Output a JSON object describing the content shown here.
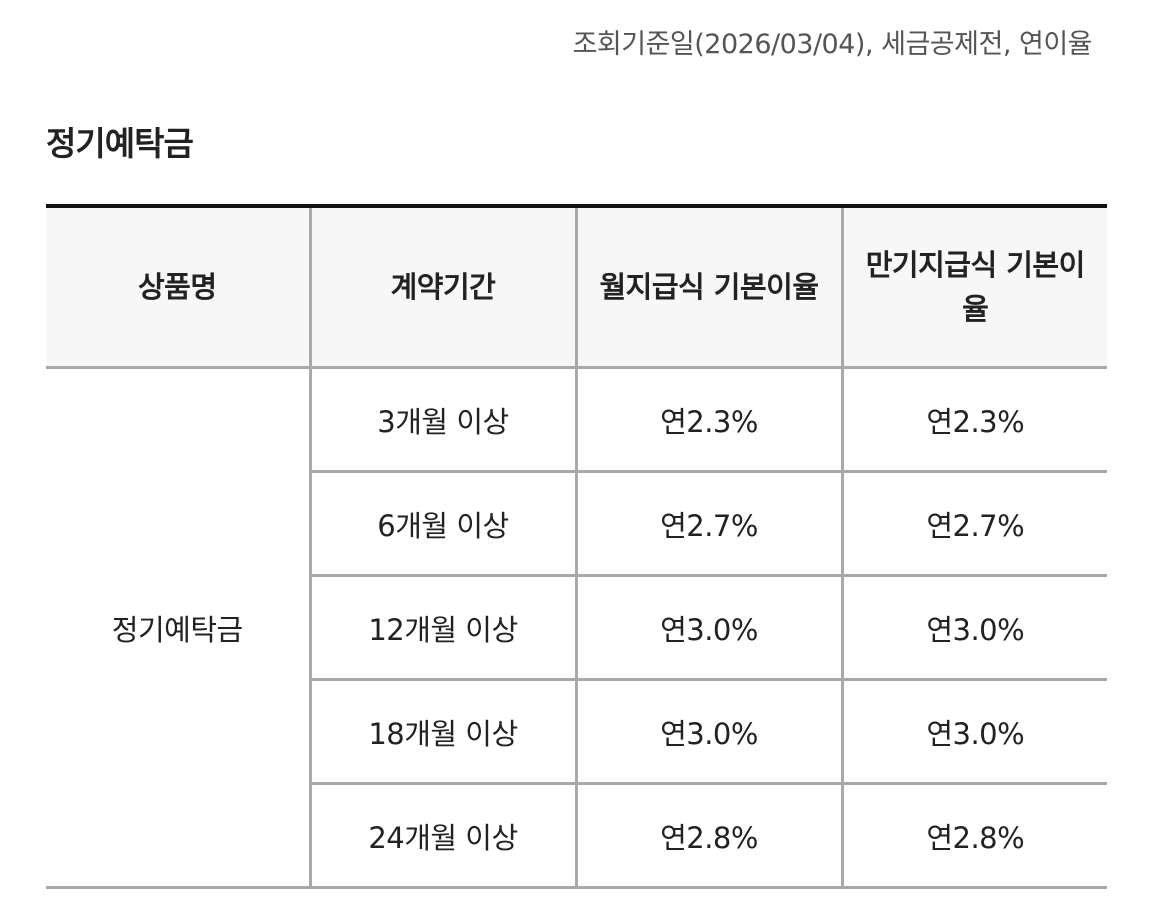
{
  "notice": "조회기준일(2026/03/04), 세금공제전, 연이율",
  "section_title": "정기예탁금",
  "table": {
    "headers": [
      "상품명",
      "계약기간",
      "월지급식 기본이율",
      "만기지급식 기본이율"
    ],
    "product_name": "정기예탁금",
    "rows": [
      {
        "period": "3개월 이상",
        "monthly": "연2.3%",
        "maturity": "연2.3%"
      },
      {
        "period": "6개월 이상",
        "monthly": "연2.7%",
        "maturity": "연2.7%"
      },
      {
        "period": "12개월 이상",
        "monthly": "연3.0%",
        "maturity": "연3.0%"
      },
      {
        "period": "18개월 이상",
        "monthly": "연3.0%",
        "maturity": "연3.0%"
      },
      {
        "period": "24개월 이상",
        "monthly": "연2.8%",
        "maturity": "연2.8%"
      }
    ]
  }
}
